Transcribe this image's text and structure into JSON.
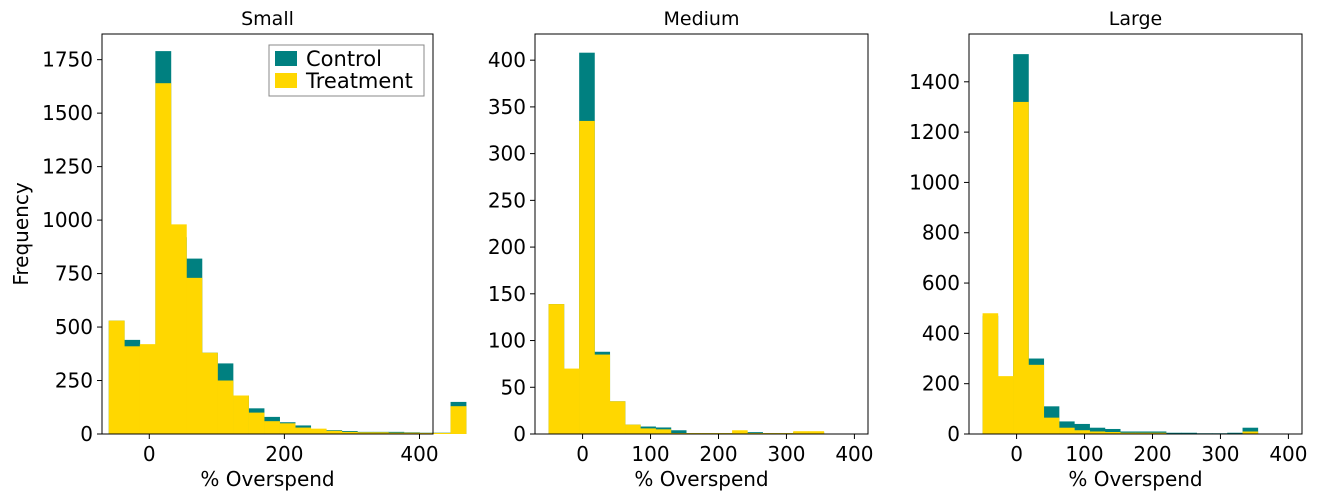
{
  "colors": {
    "control": "#008080",
    "treatment": "#ffd700"
  },
  "chart_data": [
    {
      "type": "histogram-overlay",
      "title": "Small",
      "xlabel": "% Overspend",
      "ylabel": "Frequency",
      "xlim": [
        -70,
        420
      ],
      "ylim": [
        0,
        1870
      ],
      "xticks": [
        0,
        200,
        400
      ],
      "yticks": [
        0,
        250,
        500,
        750,
        1000,
        1250,
        1500,
        1750
      ],
      "legend": {
        "placement": "top-right",
        "entries": [
          "Control",
          "Treatment"
        ]
      },
      "bin_start": -60,
      "bin_width": 23,
      "series": [
        {
          "name": "Control",
          "values": [
            530,
            440,
            410,
            1790,
            920,
            820,
            380,
            330,
            180,
            120,
            80,
            55,
            40,
            20,
            18,
            14,
            10,
            10,
            10,
            8,
            6,
            6,
            150
          ]
        },
        {
          "name": "Treatment",
          "values": [
            530,
            410,
            420,
            1640,
            980,
            730,
            380,
            250,
            180,
            100,
            60,
            50,
            30,
            25,
            15,
            10,
            8,
            8,
            6,
            6,
            5,
            5,
            130
          ]
        }
      ]
    },
    {
      "type": "histogram-overlay",
      "title": "Medium",
      "xlabel": "% Overspend",
      "ylabel": "",
      "xlim": [
        -70,
        420
      ],
      "ylim": [
        0,
        428
      ],
      "xticks": [
        0,
        100,
        200,
        300,
        400
      ],
      "yticks": [
        0,
        50,
        100,
        150,
        200,
        250,
        300,
        350,
        400
      ],
      "bin_start": -50,
      "bin_width": 22.5,
      "series": [
        {
          "name": "Control",
          "values": [
            139,
            68,
            408,
            88,
            35,
            10,
            8,
            7,
            4,
            1,
            1,
            1,
            1,
            2,
            1,
            1,
            2,
            2
          ]
        },
        {
          "name": "Treatment",
          "values": [
            139,
            70,
            335,
            85,
            35,
            10,
            6,
            5,
            1,
            1,
            1,
            1,
            4,
            1,
            1,
            1,
            3,
            3
          ]
        }
      ]
    },
    {
      "type": "histogram-overlay",
      "title": "Large",
      "xlabel": "% Overspend",
      "ylabel": "",
      "xlim": [
        -70,
        420
      ],
      "ylim": [
        0,
        1590
      ],
      "xticks": [
        0,
        100,
        200,
        300,
        400
      ],
      "yticks": [
        0,
        200,
        400,
        600,
        800,
        1000,
        1200,
        1400
      ],
      "bin_start": -50,
      "bin_width": 22.5,
      "series": [
        {
          "name": "Control",
          "values": [
            470,
            225,
            1510,
            300,
            110,
            50,
            40,
            25,
            20,
            10,
            10,
            10,
            5,
            5,
            3,
            3,
            5,
            25
          ]
        },
        {
          "name": "Treatment",
          "values": [
            480,
            230,
            1320,
            275,
            65,
            25,
            15,
            10,
            8,
            5,
            5,
            5,
            2,
            2,
            2,
            2,
            2,
            10
          ]
        }
      ]
    }
  ]
}
